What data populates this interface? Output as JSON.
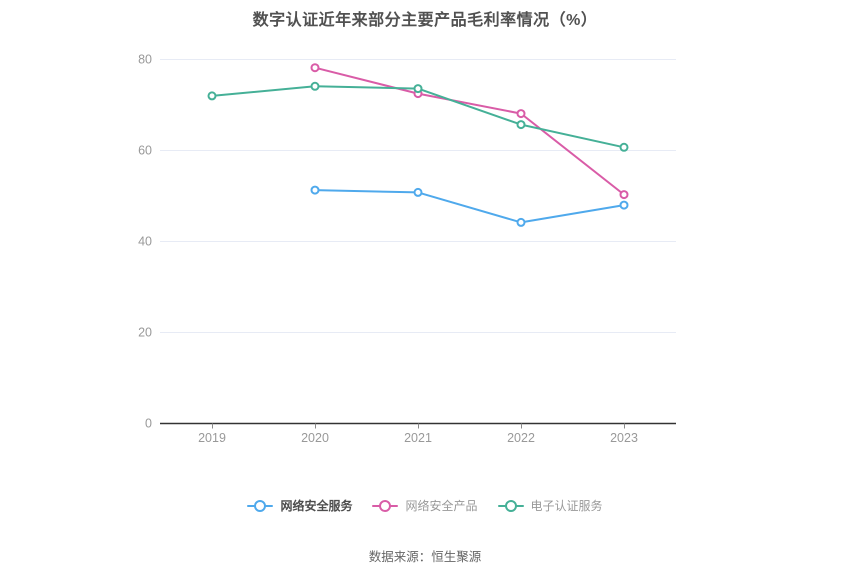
{
  "title": "数字认证近年来部分主要产品毛利率情况（%）",
  "source": "数据来源：恒生聚源",
  "colors": {
    "series_blue": "#4FA9EC",
    "series_pink": "#D95CA7",
    "series_teal": "#45B097",
    "grid": "#E7EBF5",
    "axis": "#333333",
    "tick": "#8A8A8A",
    "tick_label": "#999999",
    "title_text": "#515151",
    "legend_active_text": "#4D4D4D",
    "legend_text": "#999999",
    "source_text": "#666666",
    "background": "#FFFFFF"
  },
  "chart_data": {
    "type": "line",
    "title": "数字认证近年来部分主要产品毛利率情况（%）",
    "categories": [
      "2019",
      "2020",
      "2021",
      "2022",
      "2023"
    ],
    "series": [
      {
        "name": "网络安全服务",
        "color": "#4FA9EC",
        "values": [
          null,
          51.3,
          50.8,
          44.2,
          48.0
        ]
      },
      {
        "name": "网络安全产品",
        "color": "#D95CA7",
        "values": [
          null,
          78.2,
          72.5,
          68.1,
          50.3
        ]
      },
      {
        "name": "电子认证服务",
        "color": "#45B097",
        "values": [
          72.0,
          74.1,
          73.6,
          65.7,
          60.7
        ]
      }
    ],
    "xlabel": "",
    "ylabel": "",
    "ylim": [
      0,
      80
    ],
    "yticks": [
      0,
      20,
      40,
      60,
      80
    ],
    "grid": "horizontal-only",
    "legend_position": "bottom",
    "marker": "open-circle"
  },
  "legend": {
    "items": [
      "网络安全服务",
      "网络安全产品",
      "电子认证服务"
    ]
  }
}
